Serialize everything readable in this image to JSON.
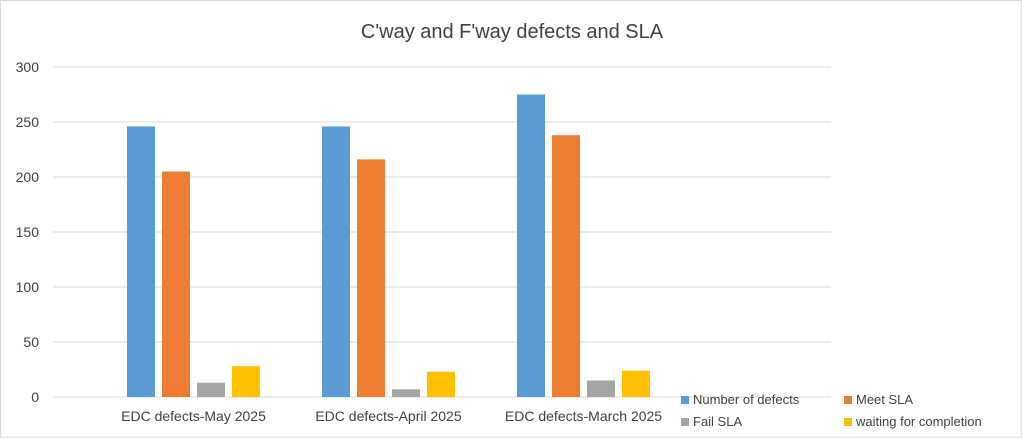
{
  "chart_data": {
    "type": "bar",
    "title": "C'way and F'way defects and SLA",
    "xlabel": "",
    "ylabel": "",
    "categories": [
      "EDC defects-May 2025",
      "EDC defects-April 2025",
      "EDC defects-March 2025"
    ],
    "series": [
      {
        "name": "Number of defects",
        "color": "#5b9bd5",
        "values": [
          246,
          246,
          275
        ]
      },
      {
        "name": "Meet SLA",
        "color": "#ed7d31",
        "values": [
          205,
          216,
          238
        ]
      },
      {
        "name": "Fail SLA",
        "color": "#a5a5a5",
        "values": [
          13,
          7,
          15
        ]
      },
      {
        "name": "waiting for completion",
        "color": "#ffc000",
        "values": [
          28,
          23,
          24
        ]
      }
    ],
    "ylim": [
      0,
      300
    ],
    "yticks": [
      "0",
      "50",
      "100",
      "150",
      "200",
      "250",
      "300"
    ],
    "grid": true,
    "legend_position": "bottom-right"
  }
}
